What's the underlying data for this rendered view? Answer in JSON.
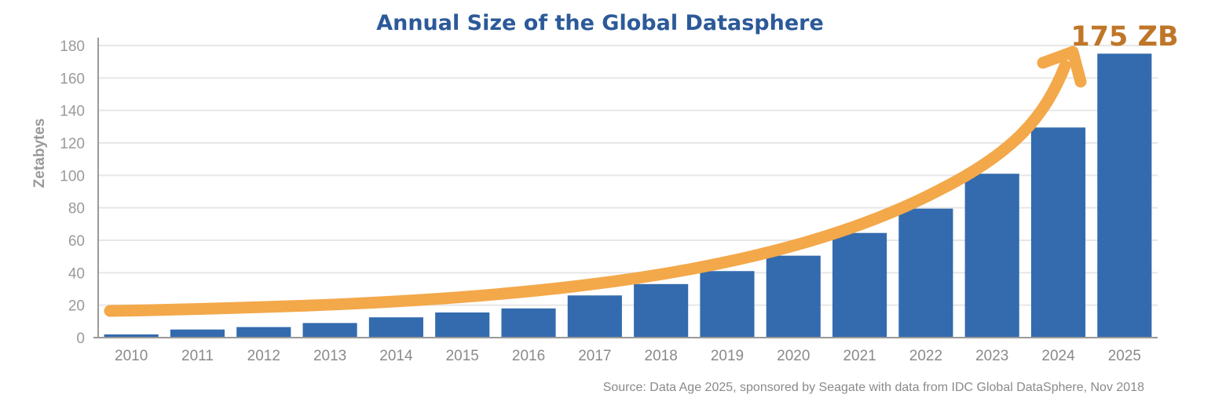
{
  "chart_data": {
    "type": "bar",
    "title": "Annual Size of the Global Datasphere",
    "xlabel": "",
    "ylabel": "Zetabytes",
    "categories": [
      "2010",
      "2011",
      "2012",
      "2013",
      "2014",
      "2015",
      "2016",
      "2017",
      "2018",
      "2019",
      "2020",
      "2021",
      "2022",
      "2023",
      "2024",
      "2025"
    ],
    "values": [
      2,
      5,
      6.5,
      9,
      12.5,
      15.5,
      18,
      26,
      33,
      41,
      50.5,
      64.5,
      79.5,
      101,
      129.5,
      175
    ],
    "ylim": [
      0,
      180
    ],
    "yticks": [
      "0",
      "20",
      "40",
      "60",
      "80",
      "100",
      "120",
      "140",
      "160",
      "180"
    ],
    "grid": true,
    "annotation": "175 ZB",
    "source": "Source: Data Age 2025, sponsored by Seagate with data from IDC Global DataSphere, Nov 2018",
    "colors": {
      "bar": "#336BAE",
      "title": "#2C5A99",
      "arrow": "#F3A84A",
      "annotation": "#C07628",
      "grid": "#e6e6e6",
      "axis": "#9a9a9a"
    }
  }
}
